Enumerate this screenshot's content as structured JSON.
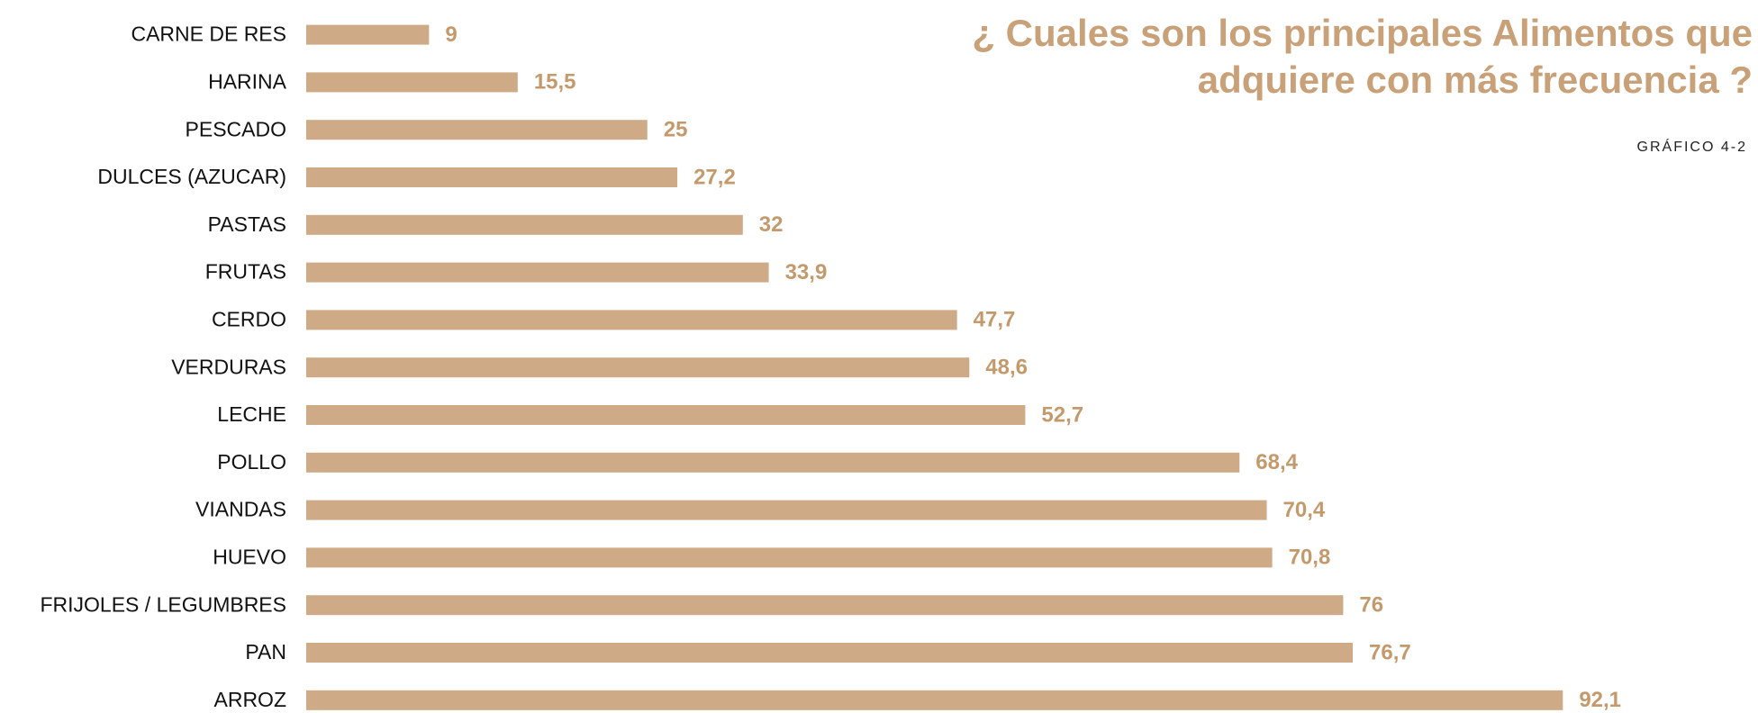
{
  "chart_data": {
    "type": "bar",
    "orientation": "horizontal",
    "title": [
      "¿ Cuales son los principales Alimentos que",
      "adquiere con más frecuencia ?"
    ],
    "subtitle": "GRÁFICO 4-2",
    "categories": [
      "CARNE DE RES",
      "HARINA",
      "PESCADO",
      "DULCES (AZUCAR)",
      "PASTAS",
      "FRUTAS",
      "CERDO",
      "VERDURAS",
      "LECHE",
      "POLLO",
      "VIANDAS",
      "HUEVO",
      "FRIJOLES / LEGUMBRES",
      "PAN",
      "ARROZ"
    ],
    "values": [
      9,
      15.5,
      25,
      27.2,
      32,
      33.9,
      47.7,
      48.6,
      52.7,
      68.4,
      70.4,
      70.8,
      76,
      76.7,
      92.1
    ],
    "value_labels": [
      "9",
      "15,5",
      "25",
      "27,2",
      "32",
      "33,9",
      "47,7",
      "48,6",
      "52,7",
      "68,4",
      "70,4",
      "70,8",
      "76",
      "76,7",
      "92,1"
    ],
    "color": "#cfaa86"
  }
}
